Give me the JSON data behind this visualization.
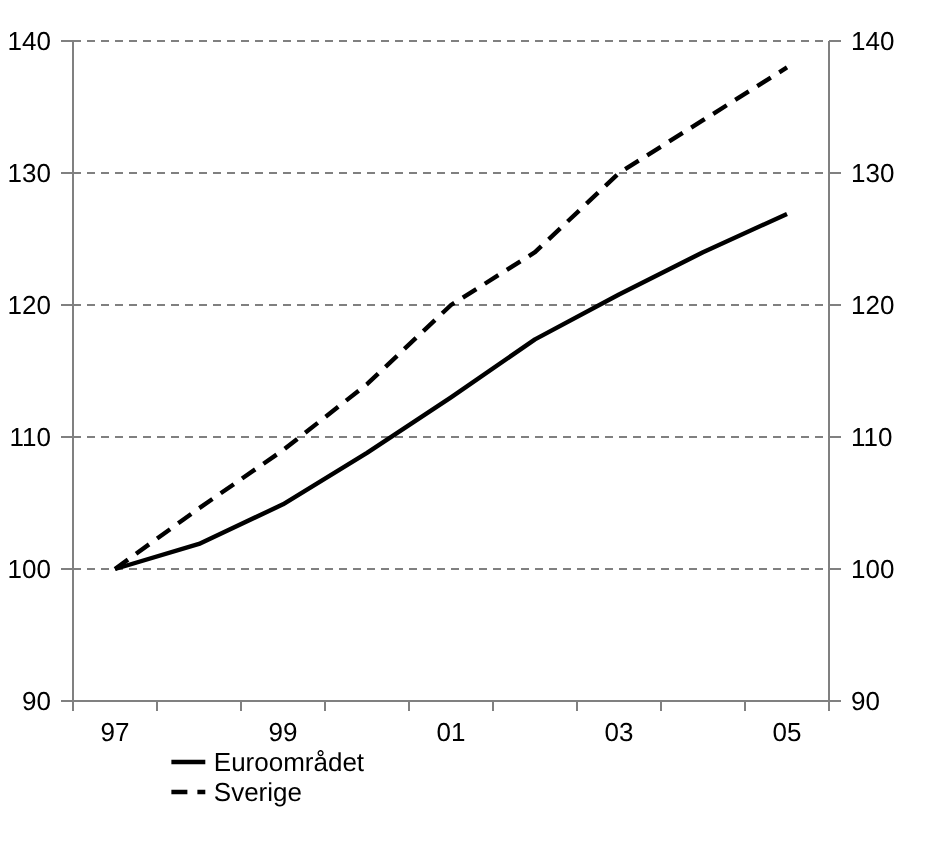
{
  "chart_data": {
    "type": "line",
    "categories": [
      "97",
      null,
      "99",
      null,
      "01",
      null,
      "03",
      null,
      "05"
    ],
    "series": [
      {
        "name": "Euroområdet",
        "color": "#000000",
        "line_style": "solid",
        "values": [
          100,
          101.9,
          104.9,
          108.8,
          113,
          117.4,
          120.8,
          124,
          126.9
        ]
      },
      {
        "name": "Sverige",
        "color": "#000000",
        "line_style": "dashed",
        "values": [
          100,
          104.6,
          109,
          114,
          120,
          124,
          130,
          134,
          138
        ]
      }
    ],
    "ylim": [
      90,
      140
    ],
    "yticks": [
      90,
      100,
      110,
      120,
      130,
      140
    ],
    "y2lim": [
      90,
      140
    ],
    "y2ticks": [
      90,
      100,
      110,
      120,
      130,
      140
    ],
    "grid": "y",
    "legend": "bottom",
    "marker": "none"
  }
}
